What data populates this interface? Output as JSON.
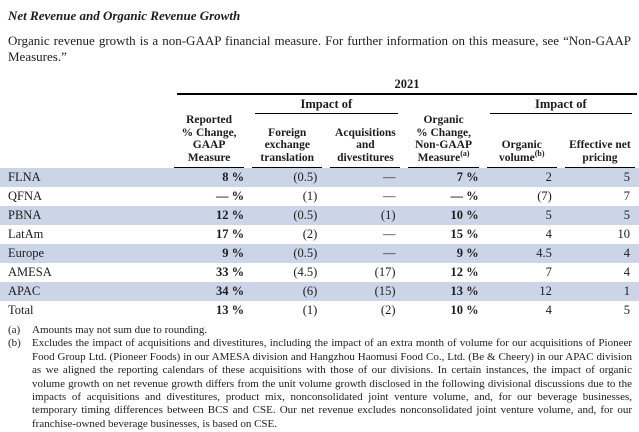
{
  "page": {
    "title": "Net Revenue and Organic Revenue Growth",
    "intro": "Organic revenue growth is a non-GAAP financial measure. For further information on this measure, see “Non-GAAP Measures.”"
  },
  "table": {
    "year": "2021",
    "impact_left": "Impact of",
    "impact_right": "Impact of",
    "columns": [
      {
        "label": "Reported\n% Change,\nGAAP\nMeasure",
        "sup": ""
      },
      {
        "label": "Foreign\nexchange\ntranslation",
        "sup": ""
      },
      {
        "label": "Acquisitions\nand\ndivestitures",
        "sup": ""
      },
      {
        "label": "Organic\n% Change,\nNon-GAAP\nMeasure",
        "sup": "(a)"
      },
      {
        "label": "Organic\nvolume",
        "sup": "(b)"
      },
      {
        "label": "Effective net\npricing",
        "sup": ""
      }
    ],
    "rows": [
      {
        "label": "FLNA",
        "values": [
          "8 %",
          "(0.5)",
          "—",
          "7 %",
          "2",
          "5"
        ]
      },
      {
        "label": "QFNA",
        "values": [
          "— %",
          "(1)",
          "—",
          "— %",
          "(7)",
          "7"
        ]
      },
      {
        "label": "PBNA",
        "values": [
          "12 %",
          "(0.5)",
          "(1)",
          "10 %",
          "5",
          "5"
        ]
      },
      {
        "label": "LatAm",
        "values": [
          "17 %",
          "(2)",
          "—",
          "15 %",
          "4",
          "10"
        ]
      },
      {
        "label": "Europe",
        "values": [
          "9 %",
          "(0.5)",
          "—",
          "9 %",
          "4.5",
          "4"
        ]
      },
      {
        "label": "AMESA",
        "values": [
          "33 %",
          "(4.5)",
          "(17)",
          "12 %",
          "7",
          "4"
        ]
      },
      {
        "label": "APAC",
        "values": [
          "34 %",
          "(6)",
          "(15)",
          "13 %",
          "12",
          "1"
        ]
      },
      {
        "label": "Total",
        "values": [
          "13 %",
          "(1)",
          "(2)",
          "10 %",
          "4",
          "5"
        ]
      }
    ],
    "colors": {
      "shaded_row": "#ccd5e8"
    }
  },
  "footnotes": [
    {
      "marker": "(a)",
      "text": "Amounts may not sum due to rounding."
    },
    {
      "marker": "(b)",
      "text": "Excludes the impact of acquisitions and divestitures, including the impact of an extra month of volume for our acquisitions of Pioneer Food Group Ltd. (Pioneer Foods) in our AMESA division and Hangzhou Haomusi Food Co., Ltd. (Be & Cheery) in our APAC division as we aligned the reporting calendars of these acquisitions with those of our divisions. In certain instances, the impact of organic volume growth on net revenue growth differs from the unit volume growth disclosed in the following divisional discussions due to the impacts of acquisitions and divestitures, product mix, nonconsolidated joint venture volume, and, for our beverage businesses, temporary timing differences between BCS and CSE. Our net revenue excludes nonconsolidated joint venture volume, and, for our franchise-owned beverage businesses, is based on CSE."
    }
  ]
}
